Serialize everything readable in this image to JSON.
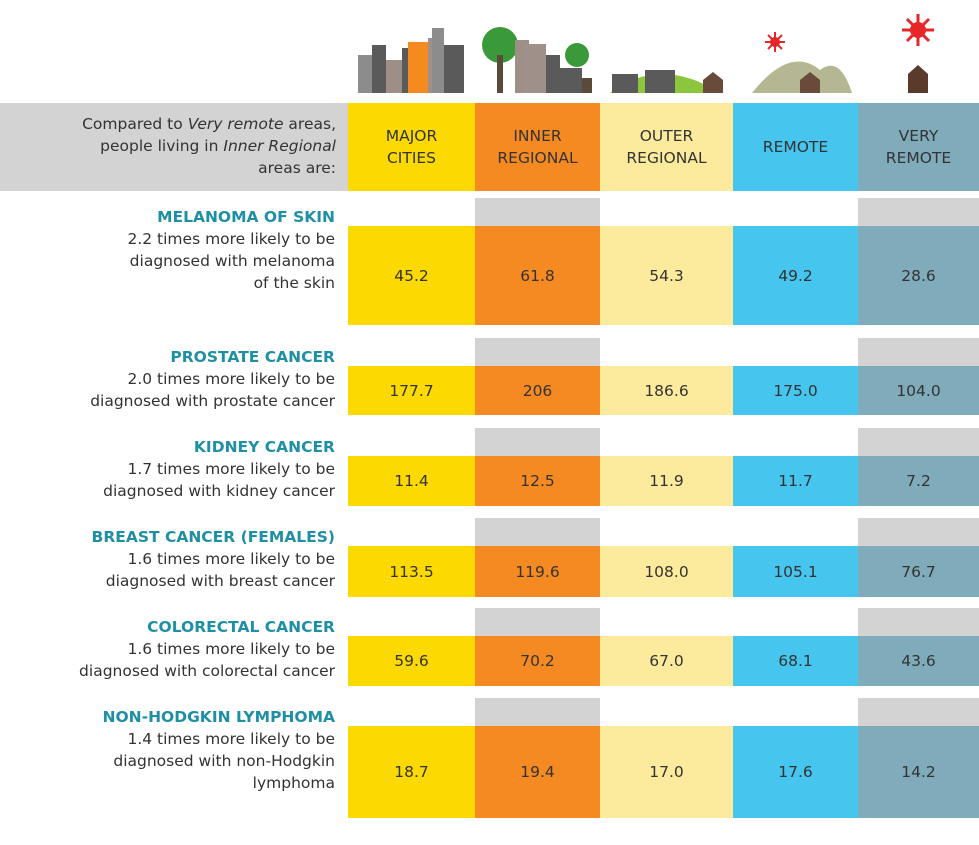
{
  "header": {
    "intro": [
      [
        {
          "text": "Compared to ",
          "italic": false
        },
        {
          "text": "Very remote",
          "italic": true
        },
        {
          "text": " areas,",
          "italic": false
        }
      ],
      [
        {
          "text": "people living in ",
          "italic": false
        },
        {
          "text": "Inner Regional",
          "italic": true
        }
      ],
      [
        {
          "text": "areas are:",
          "italic": false
        }
      ]
    ]
  },
  "columns": [
    {
      "lines": [
        "MAJOR",
        "CITIES"
      ],
      "color": "#fcd900",
      "strip": false
    },
    {
      "lines": [
        "INNER",
        "REGIONAL"
      ],
      "color": "#f58a22",
      "strip": true
    },
    {
      "lines": [
        "OUTER",
        "REGIONAL"
      ],
      "color": "#fdeb9d",
      "strip": false
    },
    {
      "lines": [
        "REMOTE"
      ],
      "color": "#46c5ee",
      "strip": false
    },
    {
      "lines": [
        "VERY",
        "REMOTE"
      ],
      "color": "#80abbb",
      "strip": true
    }
  ],
  "rows": [
    {
      "title": "MELANOMA OF SKIN",
      "description": [
        "2.2 times more likely to be",
        "diagnosed with melanoma",
        "of the skin"
      ],
      "values": [
        "45.2",
        "61.8",
        "54.3",
        "49.2",
        "28.6"
      ]
    },
    {
      "title": "PROSTATE CANCER",
      "description": [
        "2.0 times more likely to be",
        "diagnosed with prostate cancer"
      ],
      "values": [
        "177.7",
        "206",
        "186.6",
        "175.0",
        "104.0"
      ]
    },
    {
      "title": "KIDNEY CANCER",
      "description": [
        "1.7 times more likely to be",
        "diagnosed with kidney cancer"
      ],
      "values": [
        "11.4",
        "12.5",
        "11.9",
        "11.7",
        "7.2"
      ]
    },
    {
      "title": "BREAST CANCER (FEMALES)",
      "description": [
        "1.6 times more likely to be",
        "diagnosed with breast cancer"
      ],
      "values": [
        "113.5",
        "119.6",
        "108.0",
        "105.1",
        "76.7"
      ]
    },
    {
      "title": "COLORECTAL CANCER",
      "description": [
        "1.6 times more likely to be",
        "diagnosed with colorectal cancer"
      ],
      "values": [
        "59.6",
        "70.2",
        "67.0",
        "68.1",
        "43.6"
      ]
    },
    {
      "title": "NON-HODGKIN LYMPHOMA",
      "description": [
        "1.4 times more likely to be",
        "diagnosed with non-Hodgkin",
        "lymphoma"
      ],
      "values": [
        "18.7",
        "19.4",
        "17.0",
        "17.6",
        "14.2"
      ]
    }
  ]
}
